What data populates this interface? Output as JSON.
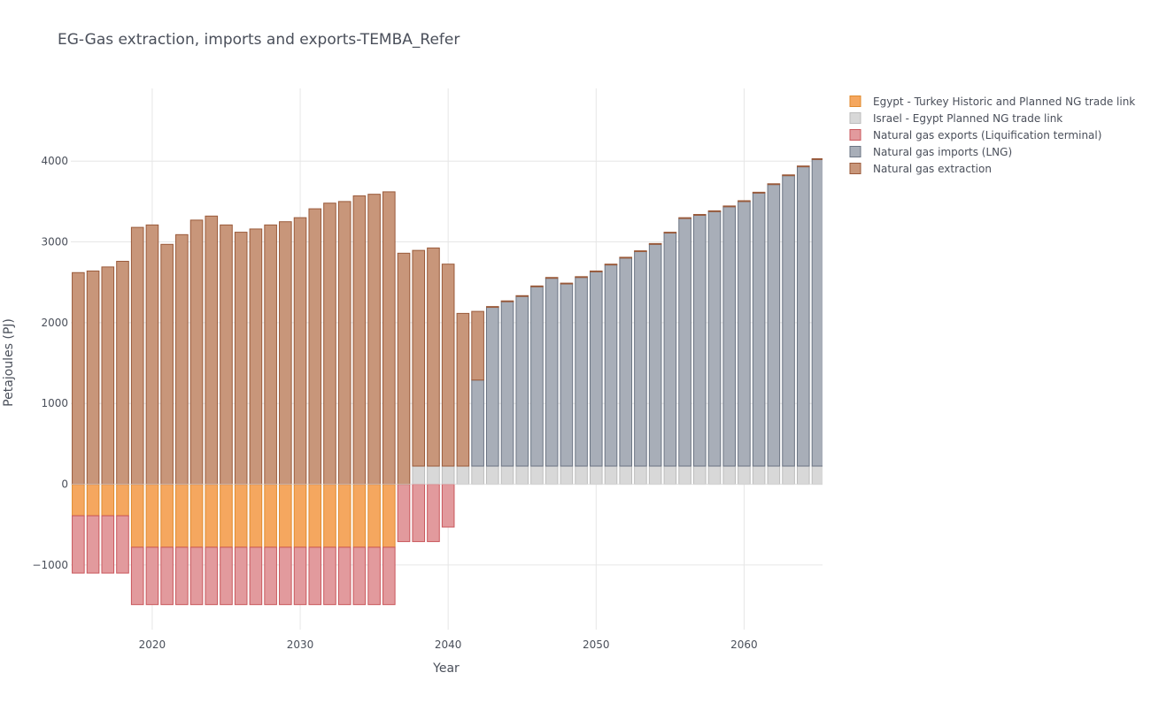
{
  "chart_data": {
    "type": "bar",
    "barmode": "relative",
    "title": "EG-Gas extraction, imports and exports-TEMBA_Refer",
    "xlabel": "Year",
    "ylabel": "Petajoules (PJ)",
    "xlim": [
      2014.5,
      2065.3
    ],
    "ylim": [
      -1800,
      4900
    ],
    "x_ticks": [
      2020,
      2030,
      2040,
      2050,
      2060
    ],
    "y_ticks": [
      -1000,
      0,
      1000,
      2000,
      3000,
      4000
    ],
    "y_tick_labels": [
      "−1000",
      "0",
      "1000",
      "2000",
      "3000",
      "4000"
    ],
    "grid": true,
    "legend_position": "top-right",
    "years": [
      2015,
      2016,
      2017,
      2018,
      2019,
      2020,
      2021,
      2022,
      2023,
      2024,
      2025,
      2026,
      2027,
      2028,
      2029,
      2030,
      2031,
      2032,
      2033,
      2034,
      2035,
      2036,
      2037,
      2038,
      2039,
      2040,
      2041,
      2042,
      2043,
      2044,
      2045,
      2046,
      2047,
      2048,
      2049,
      2050,
      2051,
      2052,
      2053,
      2054,
      2055,
      2056,
      2057,
      2058,
      2059,
      2060,
      2061,
      2062,
      2063,
      2064,
      2065
    ],
    "series": [
      {
        "name": "Egypt - Turkey Historic and Planned NG trade link",
        "color": "#f5a75f",
        "stroke": "#e08a2e",
        "values": [
          -390,
          -390,
          -390,
          -390,
          -780,
          -780,
          -780,
          -780,
          -780,
          -780,
          -780,
          -780,
          -780,
          -780,
          -780,
          -780,
          -780,
          -780,
          -780,
          -780,
          -780,
          -780,
          0,
          0,
          0,
          0,
          0,
          0,
          0,
          0,
          0,
          0,
          0,
          0,
          0,
          0,
          0,
          0,
          0,
          0,
          0,
          0,
          0,
          0,
          0,
          0,
          0,
          0,
          0,
          0,
          0
        ]
      },
      {
        "name": "Israel - Egypt Planned NG trade link",
        "color": "#d8d8d8",
        "stroke": "#bcbcbc",
        "values": [
          0,
          0,
          0,
          0,
          0,
          0,
          0,
          0,
          0,
          0,
          0,
          0,
          0,
          0,
          0,
          0,
          0,
          0,
          0,
          0,
          0,
          0,
          0,
          225,
          225,
          225,
          225,
          225,
          225,
          225,
          225,
          225,
          225,
          225,
          225,
          225,
          225,
          225,
          225,
          225,
          225,
          225,
          225,
          225,
          225,
          225,
          225,
          225,
          225,
          225,
          225
        ]
      },
      {
        "name": "Natural gas exports (Liquification terminal)",
        "color": "#e29a9d",
        "stroke": "#c9575c",
        "values": [
          -710,
          -710,
          -710,
          -710,
          -710,
          -710,
          -710,
          -710,
          -710,
          -710,
          -710,
          -710,
          -710,
          -710,
          -710,
          -710,
          -710,
          -710,
          -710,
          -710,
          -710,
          -710,
          -710,
          -710,
          -710,
          -530,
          0,
          0,
          0,
          0,
          0,
          0,
          0,
          0,
          0,
          0,
          0,
          0,
          0,
          0,
          0,
          0,
          0,
          0,
          0,
          0,
          0,
          0,
          0,
          0,
          0
        ]
      },
      {
        "name": "Natural gas imports (LNG)",
        "color": "#a8aeb8",
        "stroke": "#6b7483",
        "values": [
          0,
          0,
          0,
          0,
          0,
          0,
          0,
          0,
          0,
          0,
          0,
          0,
          0,
          0,
          0,
          0,
          0,
          0,
          0,
          0,
          0,
          0,
          0,
          0,
          0,
          0,
          0,
          1065,
          1965,
          2035,
          2100,
          2220,
          2325,
          2255,
          2335,
          2405,
          2490,
          2575,
          2655,
          2745,
          2885,
          3065,
          3105,
          3150,
          3210,
          3275,
          3380,
          3485,
          3595,
          3705,
          3795
        ]
      },
      {
        "name": "Natural gas extraction",
        "color": "#c8967a",
        "stroke": "#9a5a3a",
        "values": [
          2620,
          2640,
          2690,
          2760,
          3180,
          3210,
          2970,
          3090,
          3270,
          3320,
          3210,
          3120,
          3160,
          3210,
          3250,
          3300,
          3410,
          3480,
          3500,
          3570,
          3590,
          3620,
          2860,
          2670,
          2700,
          2500,
          1890,
          850,
          10,
          10,
          10,
          10,
          10,
          10,
          10,
          10,
          10,
          10,
          10,
          10,
          10,
          10,
          10,
          10,
          10,
          10,
          10,
          10,
          10,
          10,
          10
        ]
      }
    ]
  }
}
